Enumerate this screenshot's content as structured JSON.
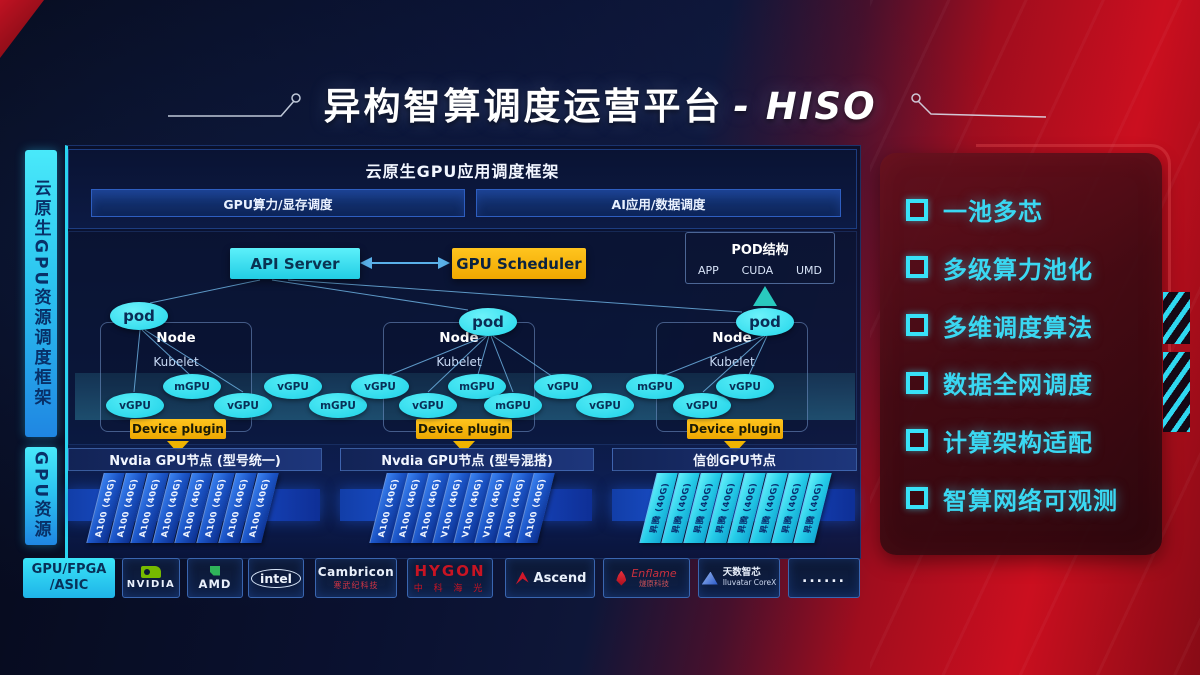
{
  "title": {
    "zh": "异构智算调度运营平台",
    "en": "- HISO"
  },
  "left_rails": {
    "rail1": "云原生GPU资源调度框架",
    "rail2": "GPU资源"
  },
  "top_frame": {
    "title": "云原生GPU应用调度框架",
    "bar_left": "GPU算力/显存调度",
    "bar_right": "AI应用/数据调度"
  },
  "scheduler": {
    "api_server": "API Server",
    "gpu_scheduler": "GPU Scheduler"
  },
  "pod_box": {
    "title": "POD结构",
    "items": [
      "APP",
      "CUDA",
      "UMD"
    ]
  },
  "nodes": [
    {
      "pod": "pod",
      "name": "Node",
      "agent": "Kubelet",
      "plugin": "Device plugin"
    },
    {
      "pod": "pod",
      "name": "Node",
      "agent": "Kubelet",
      "plugin": "Device plugin"
    },
    {
      "pod": "pod",
      "name": "Node",
      "agent": "Kubelet",
      "plugin": "Device plugin"
    }
  ],
  "gpu_band": [
    "vGPU",
    "mGPU",
    "vGPU",
    "vGPU",
    "mGPU",
    "vGPU",
    "vGPU",
    "mGPU",
    "mGPU",
    "vGPU",
    "vGPU",
    "mGPU",
    "vGPU",
    "vGPU"
  ],
  "gpu_rows": [
    {
      "label": "Nvdia GPU节点 (型号统一)",
      "style": "blue",
      "cards": [
        "A100 (40G)",
        "A100 (40G)",
        "A100 (40G)",
        "A100 (40G)",
        "A100 (40G)",
        "A100 (40G)",
        "A100 (40G)",
        "A100 (40G)"
      ]
    },
    {
      "label": "Nvdia GPU节点 (型号混搭)",
      "style": "blue",
      "cards": [
        "A100 (40G)",
        "A100 (40G)",
        "A100 (40G)",
        "V100 (40G)",
        "V100 (40G)",
        "V100 (40G)",
        "A100 (40G)",
        "A100 (40G)"
      ]
    },
    {
      "label": "信创GPU节点",
      "style": "cyan",
      "cards": [
        "昇腾 (40G)",
        "昇腾 (40G)",
        "昇腾 (40G)",
        "昇腾 (40G)",
        "昇腾 (40G)",
        "昇腾 (40G)",
        "昇腾 (40G)",
        "昇腾 (40G)"
      ]
    }
  ],
  "vendor_bar": {
    "category_line1": "GPU/FPGA",
    "category_line2": "/ASIC",
    "vendors": [
      {
        "name": "NVIDIA"
      },
      {
        "name": "AMD"
      },
      {
        "name": "intel"
      },
      {
        "name": "Cambricon",
        "sub": "寒武纪科技"
      },
      {
        "name": "HYGON",
        "sub": "中 科 海 光"
      },
      {
        "name": "Ascend"
      },
      {
        "name": "Enflame",
        "sub": "燧原科技"
      },
      {
        "name": "天数智芯",
        "sub": "Iluvatar CoreX"
      },
      {
        "name": "......"
      }
    ]
  },
  "right_panel": {
    "items": [
      "一池多芯",
      "多级算力池化",
      "多维调度算法",
      "数据全网调度",
      "计算架构适配",
      "智算网络可观测"
    ]
  },
  "colors": {
    "accent_cyan": "#2de1f5",
    "accent_yellow": "#f5b301",
    "accent_red": "#c00e1c",
    "band_blue": "#1e5ae0"
  }
}
